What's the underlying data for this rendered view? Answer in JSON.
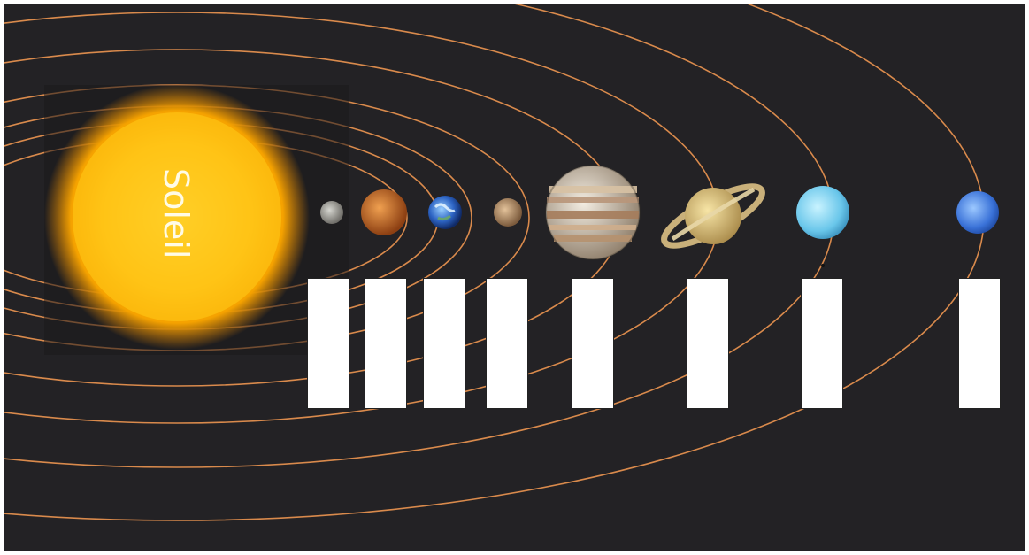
{
  "sun": {
    "label": "Soleil"
  },
  "colors": {
    "background": "#232225",
    "orbit": "#d98a4c",
    "label_box": "#ffffff"
  },
  "planets": [
    {
      "icon": "mercury-icon"
    },
    {
      "icon": "venus-icon"
    },
    {
      "icon": "earth-icon"
    },
    {
      "icon": "mars-icon"
    },
    {
      "icon": "jupiter-icon"
    },
    {
      "icon": "saturn-icon"
    },
    {
      "icon": "uranus-icon"
    },
    {
      "icon": "neptune-icon"
    }
  ],
  "label_boxes_count_text": ""
}
